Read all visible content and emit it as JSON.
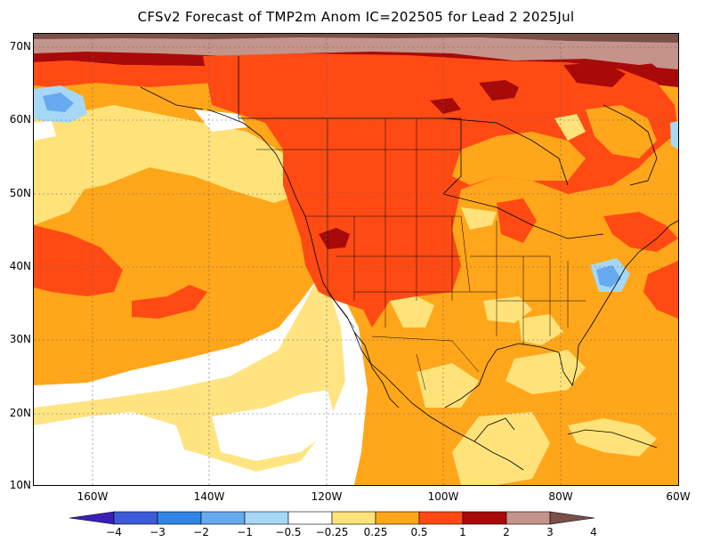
{
  "title": "CFSv2 Forecast of TMP2m Anom IC=202505 for Lead 2 2025Jul",
  "lat_labels": [
    "70N",
    "60N",
    "50N",
    "40N",
    "30N",
    "20N",
    "10N"
  ],
  "lon_labels": [
    "160W",
    "140W",
    "120W",
    "100W",
    "80W",
    "60W"
  ],
  "colorbar": {
    "labels": [
      "−4",
      "−3",
      "−2",
      "−1",
      "−0.5",
      "−0.25",
      "0.25",
      "0.5",
      "1",
      "2",
      "3",
      "4"
    ],
    "colors": [
      "#3a1fb8",
      "#3c5bd8",
      "#2f86e6",
      "#66aaf0",
      "#a6d8f6",
      "#ffffff",
      "#ffe37a",
      "#ffa61a",
      "#ff4a14",
      "#a80a0a",
      "#c4938a",
      "#7a5048"
    ]
  },
  "map_colors": {
    "white": "#ffffff",
    "light_yellow": "#ffe37a",
    "orange": "#ffa61a",
    "red_orange": "#ff4a14",
    "dark_red": "#a80a0a",
    "tan": "#c4938a",
    "brown": "#7a5048",
    "light_blue": "#a6d8f6",
    "blue": "#66aaf0"
  }
}
